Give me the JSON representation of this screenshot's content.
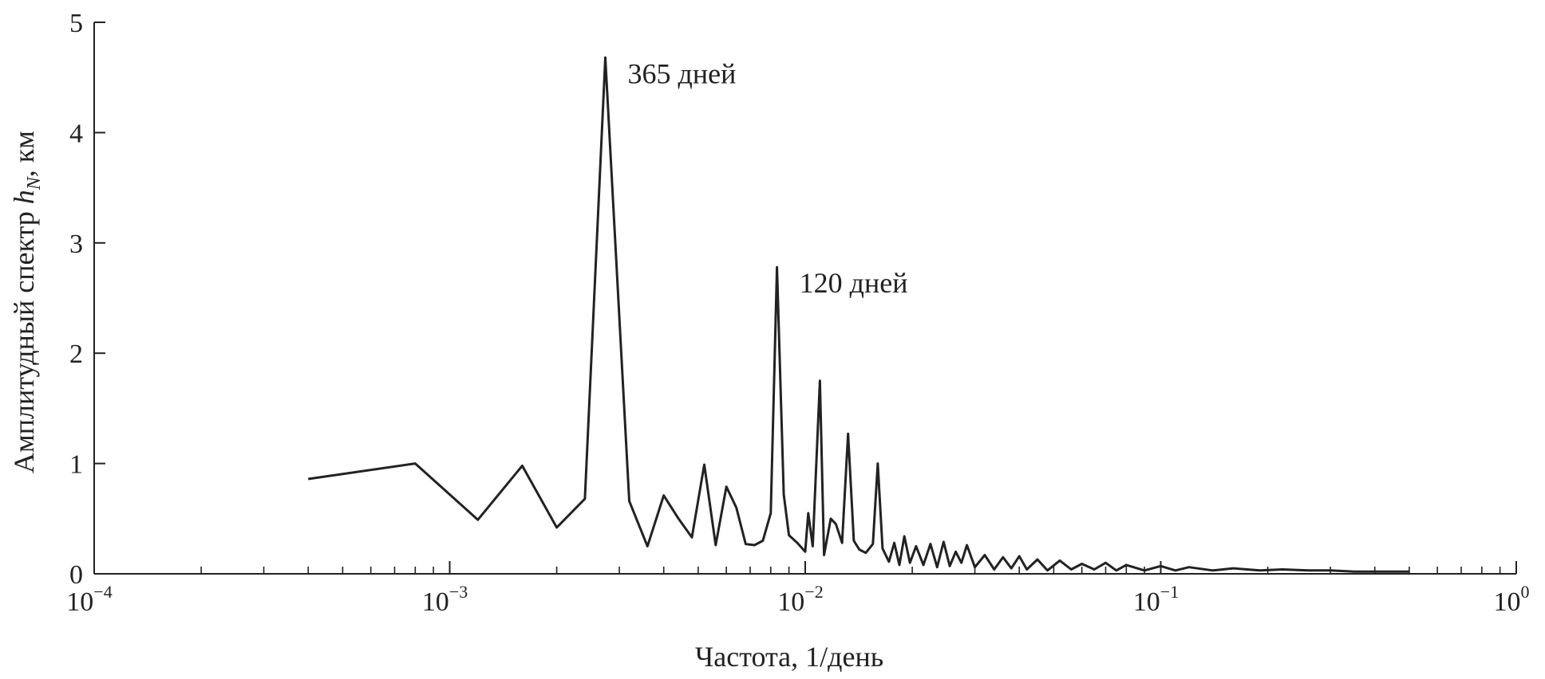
{
  "chart_data": {
    "type": "line",
    "xlabel": "Частота, 1/день",
    "ylabel_main": "Амплитудный спектр ",
    "ylabel_var": "h",
    "ylabel_sub": "N",
    "ylabel_unit": ", км",
    "xscale": "log",
    "xlim": [
      0.0001,
      1
    ],
    "ylim": [
      0,
      5
    ],
    "grid": false,
    "x_ticks": [
      {
        "base": "10",
        "exp": "−4",
        "value": 0.0001
      },
      {
        "base": "10",
        "exp": "−3",
        "value": 0.001
      },
      {
        "base": "10",
        "exp": "−2",
        "value": 0.01
      },
      {
        "base": "10",
        "exp": "−1",
        "value": 0.1
      },
      {
        "base": "10",
        "exp": "0",
        "value": 1
      }
    ],
    "y_ticks": [
      "0",
      "1",
      "2",
      "3",
      "4",
      "5"
    ],
    "annotations": [
      {
        "text": "365 дней",
        "x": 0.00274,
        "y": 4.68
      },
      {
        "text": "120 дней",
        "x": 0.00833,
        "y": 2.78
      }
    ],
    "series": [
      {
        "x": [
          0.0004,
          0.0008,
          0.0012,
          0.0016,
          0.002,
          0.0024,
          0.00274,
          0.0032,
          0.0036,
          0.004,
          0.0044,
          0.0048,
          0.0052,
          0.0056,
          0.006,
          0.0064,
          0.0068,
          0.0072,
          0.0076,
          0.008,
          0.00833,
          0.0087,
          0.009,
          0.0095,
          0.01,
          0.0102,
          0.0105,
          0.011,
          0.0113,
          0.0118,
          0.0122,
          0.0127,
          0.0132,
          0.0137,
          0.0142,
          0.0148,
          0.0155,
          0.016,
          0.0165,
          0.0172,
          0.0178,
          0.0184,
          0.019,
          0.0197,
          0.0205,
          0.0215,
          0.0225,
          0.0235,
          0.0245,
          0.0255,
          0.0265,
          0.0275,
          0.0285,
          0.03,
          0.032,
          0.034,
          0.036,
          0.038,
          0.04,
          0.042,
          0.045,
          0.048,
          0.052,
          0.056,
          0.06,
          0.065,
          0.07,
          0.075,
          0.08,
          0.09,
          0.1,
          0.11,
          0.12,
          0.14,
          0.16,
          0.19,
          0.22,
          0.26,
          0.3,
          0.35,
          0.4,
          0.45,
          0.5
        ],
        "y": [
          0.86,
          1.0,
          0.49,
          0.98,
          0.42,
          0.68,
          4.68,
          0.66,
          0.25,
          0.71,
          0.5,
          0.33,
          0.99,
          0.26,
          0.79,
          0.6,
          0.27,
          0.26,
          0.3,
          0.55,
          2.78,
          0.72,
          0.35,
          0.28,
          0.2,
          0.55,
          0.25,
          1.75,
          0.17,
          0.5,
          0.45,
          0.28,
          1.27,
          0.3,
          0.22,
          0.19,
          0.27,
          1.0,
          0.23,
          0.11,
          0.28,
          0.08,
          0.34,
          0.1,
          0.25,
          0.08,
          0.27,
          0.06,
          0.29,
          0.07,
          0.2,
          0.1,
          0.26,
          0.06,
          0.17,
          0.04,
          0.15,
          0.05,
          0.16,
          0.04,
          0.13,
          0.03,
          0.12,
          0.04,
          0.09,
          0.04,
          0.1,
          0.03,
          0.08,
          0.03,
          0.07,
          0.03,
          0.06,
          0.03,
          0.05,
          0.03,
          0.04,
          0.03,
          0.03,
          0.02,
          0.02,
          0.02,
          0.02
        ]
      }
    ]
  }
}
